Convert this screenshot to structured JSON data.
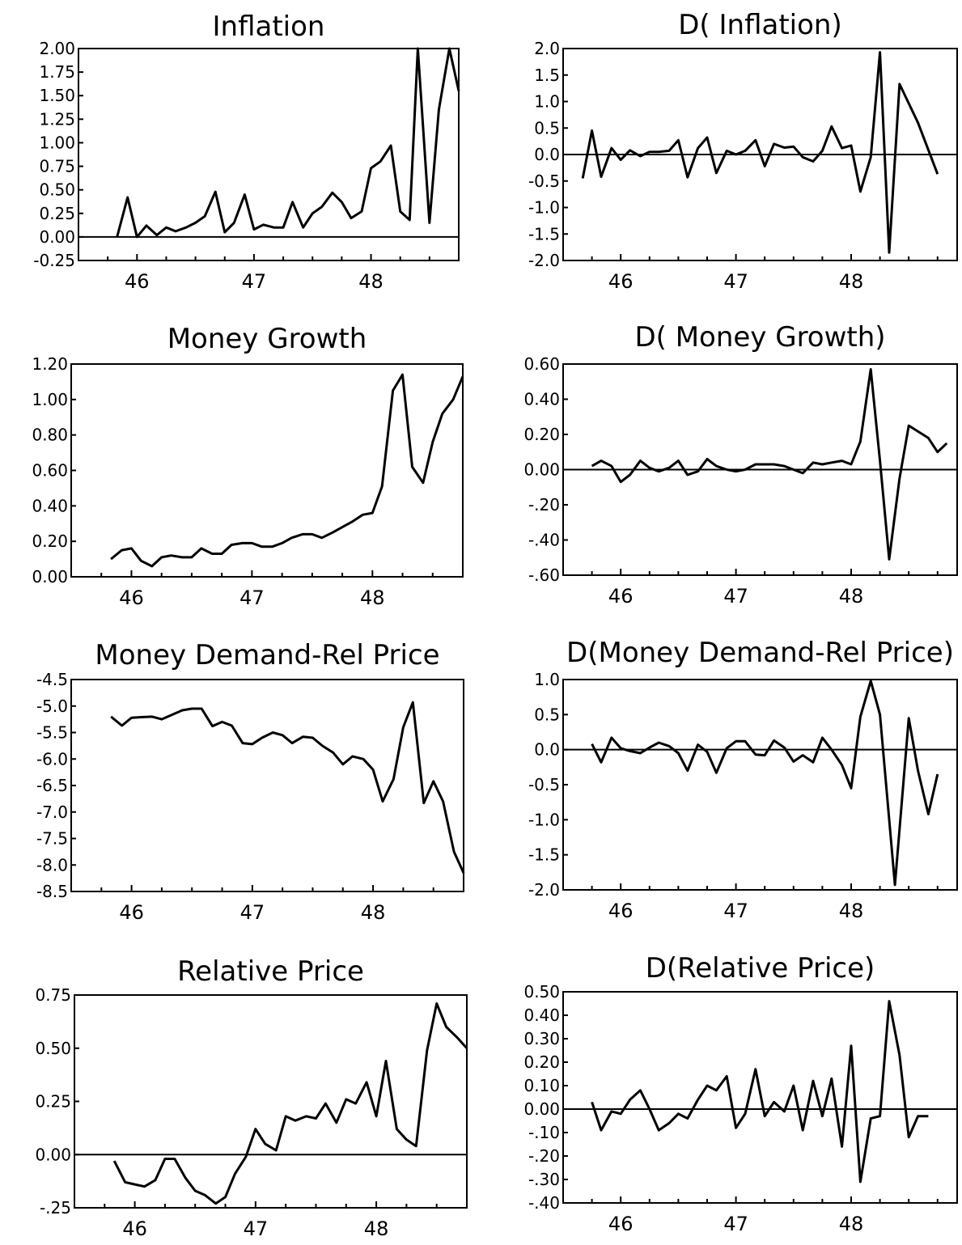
{
  "x_tick_labels": [
    "46",
    "47",
    "48"
  ],
  "chart_data": [
    {
      "type": "line",
      "title": "Inflation",
      "ylim": [
        -0.25,
        2.0
      ],
      "yticks": [
        2.0,
        1.75,
        1.5,
        1.25,
        1.0,
        0.75,
        0.5,
        0.25,
        0.0,
        -0.25
      ],
      "ytick_labels": [
        "2.00",
        "1.75",
        "1.50",
        "1.25",
        "1.00",
        "0.75",
        "0.50",
        "0.25",
        "0.00",
        "-0.25"
      ],
      "xlim": [
        45.5,
        48.75
      ],
      "xticks": [
        46,
        47,
        48
      ],
      "x_tick_labels": [
        "46",
        "47",
        "48"
      ],
      "zero_line": true,
      "values": [
        0.0,
        0.42,
        0.0,
        0.12,
        0.02,
        0.1,
        0.06,
        0.1,
        0.15,
        0.22,
        0.48,
        0.05,
        0.15,
        0.45,
        0.08,
        0.13,
        0.1,
        0.1,
        0.37,
        0.1,
        0.25,
        0.32,
        0.47,
        0.37,
        0.2,
        0.27,
        0.73,
        0.8,
        0.97,
        0.27,
        0.18,
        2.0,
        0.15,
        1.35,
        2.0,
        1.55
      ],
      "x": [
        45.83,
        45.92,
        46.0,
        46.08,
        46.17,
        46.25,
        46.33,
        46.42,
        46.5,
        46.58,
        46.67,
        46.75,
        46.83,
        46.92,
        47.0,
        47.08,
        47.17,
        47.25,
        47.33,
        47.42,
        47.5,
        47.58,
        47.67,
        47.75,
        47.83,
        47.92,
        48.0,
        48.08,
        48.17,
        48.25,
        48.33,
        48.4,
        48.5,
        48.58,
        48.67,
        48.75
      ]
    },
    {
      "type": "line",
      "title": "D( Inflation)",
      "ylim": [
        -2.0,
        2.0
      ],
      "yticks": [
        2.0,
        1.5,
        1.0,
        0.5,
        0.0,
        -0.5,
        -1.0,
        -1.5,
        -2.0
      ],
      "ytick_labels": [
        "2.0",
        "1.5",
        "1.0",
        "0.5",
        "0.0",
        "-0.5",
        "-1.0",
        "-1.5",
        "-2.0"
      ],
      "xlim": [
        45.5,
        48.92
      ],
      "xticks": [
        46,
        47,
        48
      ],
      "x_tick_labels": [
        "46",
        "47",
        "48"
      ],
      "zero_line": true,
      "values": [
        -0.45,
        0.45,
        -0.42,
        0.12,
        -0.1,
        0.08,
        -0.03,
        0.05,
        0.05,
        0.07,
        0.27,
        -0.43,
        0.12,
        0.32,
        -0.35,
        0.07,
        0.0,
        0.07,
        0.27,
        -0.22,
        0.2,
        0.13,
        0.15,
        -0.05,
        -0.13,
        0.07,
        0.53,
        0.12,
        0.17,
        -0.7,
        -0.05,
        1.93,
        -1.85,
        1.33,
        0.6,
        -0.37
      ],
      "x": [
        45.67,
        45.75,
        45.83,
        45.92,
        46.0,
        46.08,
        46.17,
        46.25,
        46.33,
        46.42,
        46.5,
        46.58,
        46.67,
        46.75,
        46.83,
        46.92,
        47.0,
        47.08,
        47.17,
        47.25,
        47.33,
        47.42,
        47.5,
        47.58,
        47.67,
        47.75,
        47.83,
        47.92,
        48.0,
        48.08,
        48.17,
        48.25,
        48.33,
        48.42,
        48.58,
        48.75
      ]
    },
    {
      "type": "line",
      "title": "Money Growth",
      "ylim": [
        0.0,
        1.2
      ],
      "yticks": [
        1.2,
        1.0,
        0.8,
        0.6,
        0.4,
        0.2,
        0.0
      ],
      "ytick_labels": [
        "1.20",
        "1.00",
        "0.80",
        "0.60",
        "0.40",
        "0.20",
        "0.00"
      ],
      "xlim": [
        45.5,
        48.75
      ],
      "xticks": [
        46,
        47,
        48
      ],
      "x_tick_labels": [
        "46",
        "47",
        "48"
      ],
      "zero_line": false,
      "values": [
        0.1,
        0.15,
        0.16,
        0.09,
        0.06,
        0.11,
        0.12,
        0.11,
        0.11,
        0.16,
        0.13,
        0.13,
        0.18,
        0.19,
        0.19,
        0.17,
        0.17,
        0.19,
        0.22,
        0.24,
        0.24,
        0.22,
        0.25,
        0.28,
        0.31,
        0.35,
        0.36,
        0.51,
        1.05,
        1.14,
        0.62,
        0.53,
        0.76,
        0.92,
        1.0,
        1.13
      ],
      "x": [
        45.83,
        45.92,
        46.0,
        46.08,
        46.17,
        46.25,
        46.33,
        46.42,
        46.5,
        46.58,
        46.67,
        46.75,
        46.83,
        46.92,
        47.0,
        47.08,
        47.17,
        47.25,
        47.33,
        47.42,
        47.5,
        47.58,
        47.67,
        47.75,
        47.83,
        47.92,
        48.0,
        48.08,
        48.17,
        48.25,
        48.33,
        48.42,
        48.5,
        48.58,
        48.67,
        48.75
      ]
    },
    {
      "type": "line",
      "title": "D( Money Growth)",
      "ylim": [
        -0.6,
        0.6
      ],
      "yticks": [
        0.6,
        0.4,
        0.2,
        0.0,
        -0.2,
        -0.4,
        -0.6
      ],
      "ytick_labels": [
        "0.60",
        "0.40",
        "0.20",
        "0.00",
        "-.20",
        "-.40",
        "-.60"
      ],
      "xlim": [
        45.5,
        48.92
      ],
      "xticks": [
        46,
        47,
        48
      ],
      "x_tick_labels": [
        "46",
        "47",
        "48"
      ],
      "zero_line": true,
      "values": [
        0.02,
        0.05,
        0.02,
        -0.07,
        -0.03,
        0.05,
        0.01,
        -0.01,
        0.01,
        0.05,
        -0.03,
        -0.01,
        0.06,
        0.02,
        0.0,
        -0.01,
        0.0,
        0.03,
        0.03,
        0.03,
        0.02,
        0.0,
        -0.02,
        0.04,
        0.03,
        0.04,
        0.05,
        0.03,
        0.16,
        0.57,
        0.05,
        -0.51,
        -0.05,
        0.25,
        0.18,
        0.1,
        0.15
      ],
      "x": [
        45.75,
        45.83,
        45.92,
        46.0,
        46.08,
        46.17,
        46.25,
        46.33,
        46.42,
        46.5,
        46.58,
        46.67,
        46.75,
        46.83,
        46.92,
        47.0,
        47.08,
        47.17,
        47.25,
        47.33,
        47.42,
        47.5,
        47.58,
        47.67,
        47.75,
        47.83,
        47.92,
        48.0,
        48.08,
        48.17,
        48.25,
        48.33,
        48.42,
        48.5,
        48.67,
        48.75,
        48.83
      ]
    },
    {
      "type": "line",
      "title": "Money Demand-Rel Price",
      "ylim": [
        -8.5,
        -4.5
      ],
      "yticks": [
        -4.5,
        -5.0,
        -5.5,
        -6.0,
        -6.5,
        -7.0,
        -7.5,
        -8.0,
        -8.5
      ],
      "ytick_labels": [
        "-4.5",
        "-5.0",
        "-5.5",
        "-6.0",
        "-6.5",
        "-7.0",
        "-7.5",
        "-8.0",
        "-8.5"
      ],
      "xlim": [
        45.5,
        48.75
      ],
      "xticks": [
        46,
        47,
        48
      ],
      "x_tick_labels": [
        "46",
        "47",
        "48"
      ],
      "zero_line": false,
      "values": [
        -5.2,
        -5.37,
        -5.22,
        -5.21,
        -5.2,
        -5.25,
        -5.17,
        -5.08,
        -5.05,
        -5.05,
        -5.38,
        -5.3,
        -5.37,
        -5.7,
        -5.72,
        -5.6,
        -5.5,
        -5.55,
        -5.7,
        -5.58,
        -5.6,
        -5.75,
        -5.88,
        -6.1,
        -5.95,
        -6.0,
        -6.2,
        -6.8,
        -6.38,
        -5.4,
        -4.93,
        -6.83,
        -6.42,
        -6.8,
        -7.75,
        -8.15
      ],
      "x": [
        45.83,
        45.92,
        46.0,
        46.08,
        46.17,
        46.25,
        46.33,
        46.42,
        46.5,
        46.58,
        46.67,
        46.75,
        46.83,
        46.92,
        47.0,
        47.08,
        47.17,
        47.25,
        47.33,
        47.42,
        47.5,
        47.58,
        47.67,
        47.75,
        47.83,
        47.92,
        48.0,
        48.08,
        48.17,
        48.25,
        48.33,
        48.42,
        48.5,
        48.58,
        48.67,
        48.75
      ]
    },
    {
      "type": "line",
      "title": "D(Money Demand-Rel Price)",
      "ylim": [
        -2.0,
        1.0
      ],
      "yticks": [
        1.0,
        0.5,
        0.0,
        -0.5,
        -1.0,
        -1.5,
        -2.0
      ],
      "ytick_labels": [
        "1.0",
        "0.5",
        "0.0",
        "-0.5",
        "-1.0",
        "-1.5",
        "-2.0"
      ],
      "xlim": [
        45.5,
        48.92
      ],
      "xticks": [
        46,
        47,
        48
      ],
      "x_tick_labels": [
        "46",
        "47",
        "48"
      ],
      "zero_line": true,
      "values": [
        0.08,
        -0.18,
        0.17,
        0.02,
        -0.02,
        -0.05,
        0.03,
        0.1,
        0.05,
        -0.05,
        -0.3,
        0.07,
        -0.03,
        -0.33,
        0.02,
        0.12,
        0.12,
        -0.07,
        -0.08,
        0.13,
        0.03,
        -0.17,
        -0.08,
        -0.18,
        0.17,
        0.0,
        -0.22,
        -0.55,
        0.47,
        0.98,
        0.5,
        -1.93,
        0.45,
        -0.3,
        -0.92,
        -0.35
      ],
      "x": [
        45.75,
        45.83,
        45.92,
        46.0,
        46.08,
        46.17,
        46.25,
        46.33,
        46.42,
        46.5,
        46.58,
        46.67,
        46.75,
        46.83,
        46.92,
        47.0,
        47.08,
        47.17,
        47.25,
        47.33,
        47.42,
        47.5,
        47.58,
        47.67,
        47.75,
        47.83,
        47.92,
        48.0,
        48.08,
        48.17,
        48.25,
        48.38,
        48.5,
        48.58,
        48.67,
        48.75
      ]
    },
    {
      "type": "line",
      "title": "Relative Price",
      "ylim": [
        -0.25,
        0.75
      ],
      "yticks": [
        0.75,
        0.5,
        0.25,
        0.0,
        -0.25
      ],
      "ytick_labels": [
        "0.75",
        "0.50",
        "0.25",
        "0.00",
        "-.25"
      ],
      "xlim": [
        45.5,
        48.75
      ],
      "xticks": [
        46,
        47,
        48
      ],
      "x_tick_labels": [
        "46",
        "47",
        "48"
      ],
      "zero_line": true,
      "values": [
        -0.03,
        -0.13,
        -0.14,
        -0.15,
        -0.12,
        -0.02,
        -0.02,
        -0.11,
        -0.17,
        -0.19,
        -0.23,
        -0.2,
        -0.09,
        -0.01,
        0.12,
        0.05,
        0.02,
        0.18,
        0.16,
        0.18,
        0.17,
        0.24,
        0.15,
        0.26,
        0.24,
        0.34,
        0.18,
        0.44,
        0.12,
        0.07,
        0.04,
        0.49,
        0.71,
        0.6,
        0.55,
        0.5
      ],
      "x": [
        45.83,
        45.92,
        46.0,
        46.08,
        46.17,
        46.25,
        46.33,
        46.42,
        46.5,
        46.58,
        46.67,
        46.75,
        46.83,
        46.92,
        47.0,
        47.08,
        47.17,
        47.25,
        47.33,
        47.42,
        47.5,
        47.58,
        47.67,
        47.75,
        47.83,
        47.92,
        48.0,
        48.08,
        48.17,
        48.25,
        48.33,
        48.42,
        48.5,
        48.58,
        48.67,
        48.75
      ]
    },
    {
      "type": "line",
      "title": "D(Relative Price)",
      "ylim": [
        -0.4,
        0.5
      ],
      "yticks": [
        0.5,
        0.4,
        0.3,
        0.2,
        0.1,
        0.0,
        -0.1,
        -0.2,
        -0.3,
        -0.4
      ],
      "ytick_labels": [
        "0.50",
        "0.40",
        "0.30",
        "0.20",
        "0.10",
        "0.00",
        "-.10",
        "-.20",
        "-.30",
        "-.40"
      ],
      "xlim": [
        45.5,
        48.92
      ],
      "xticks": [
        46,
        47,
        48
      ],
      "x_tick_labels": [
        "46",
        "47",
        "48"
      ],
      "zero_line": true,
      "values": [
        0.03,
        -0.09,
        -0.01,
        -0.02,
        0.04,
        0.08,
        0.0,
        -0.09,
        -0.06,
        -0.02,
        -0.04,
        0.04,
        0.1,
        0.08,
        0.14,
        -0.08,
        -0.02,
        0.17,
        -0.03,
        0.03,
        -0.01,
        0.1,
        -0.09,
        0.12,
        -0.03,
        0.13,
        -0.16,
        0.27,
        -0.31,
        -0.04,
        -0.03,
        0.46,
        0.23,
        -0.12,
        -0.03,
        -0.03
      ],
      "x": [
        45.75,
        45.83,
        45.92,
        46.0,
        46.08,
        46.17,
        46.25,
        46.33,
        46.42,
        46.5,
        46.58,
        46.67,
        46.75,
        46.83,
        46.92,
        47.0,
        47.08,
        47.17,
        47.25,
        47.33,
        47.42,
        47.5,
        47.58,
        47.67,
        47.75,
        47.83,
        47.92,
        48.0,
        48.08,
        48.17,
        48.25,
        48.33,
        48.42,
        48.5,
        48.58,
        48.67
      ]
    }
  ]
}
